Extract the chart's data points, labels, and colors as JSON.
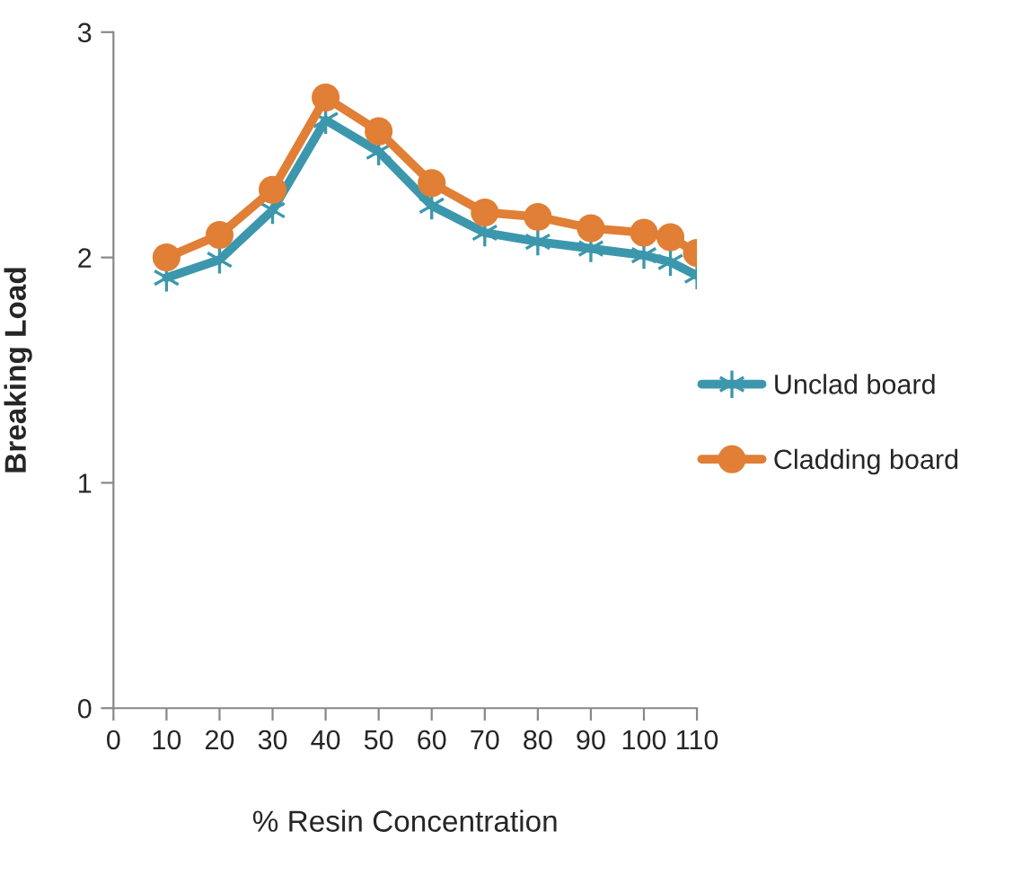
{
  "chart_data": {
    "type": "line",
    "xlabel": "% Resin Concentration",
    "ylabel": "Breaking Load",
    "x": [
      10,
      20,
      30,
      40,
      50,
      60,
      70,
      80,
      90,
      100,
      105,
      110
    ],
    "series": [
      {
        "name": "Unclad board",
        "color": "#3c97ad",
        "marker": "cross",
        "values": [
          1.91,
          1.99,
          2.21,
          2.61,
          2.47,
          2.23,
          2.11,
          2.07,
          2.04,
          2.01,
          1.98,
          1.92
        ]
      },
      {
        "name": "Cladding board",
        "color": "#e07f35",
        "marker": "circle",
        "values": [
          2.0,
          2.1,
          2.3,
          2.71,
          2.56,
          2.33,
          2.2,
          2.18,
          2.13,
          2.11,
          2.09,
          2.02
        ]
      }
    ],
    "xlim": [
      0,
      110
    ],
    "xticks": [
      0,
      10,
      20,
      30,
      40,
      50,
      60,
      70,
      80,
      90,
      100,
      110
    ],
    "ylim": [
      0,
      3
    ],
    "yticks": [
      0,
      1,
      2,
      3
    ],
    "grid": false,
    "legend": "right",
    "line_style": "solid"
  }
}
